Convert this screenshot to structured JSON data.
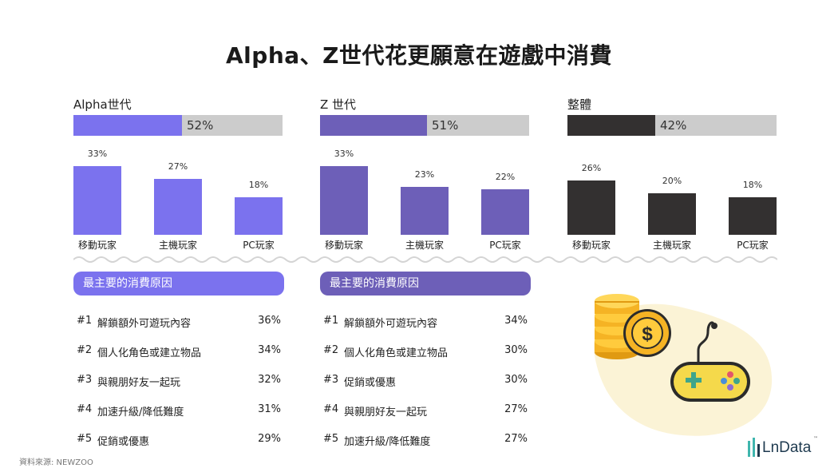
{
  "title": "Alpha、Z世代花更願意在遊戲中消費",
  "source": "資料來源: NEWZOO",
  "logo_text": "LnData",
  "logo_tm": "™",
  "colors": {
    "alpha": "#7B72EE",
    "genz": "#6D5FB8",
    "overall": "#333030",
    "track": "#CCCCCC",
    "blob": "#FBF3D6"
  },
  "chart_data": [
    {
      "type": "bar",
      "title": "Alpha世代",
      "share_label": "52%",
      "share": 0.52,
      "categories": [
        "移動玩家",
        "主機玩家",
        "PC玩家"
      ],
      "values": [
        33,
        27,
        18
      ],
      "value_labels": [
        "33%",
        "27%",
        "18%"
      ],
      "ylim": [
        0,
        33
      ]
    },
    {
      "type": "bar",
      "title": "Z 世代",
      "share_label": "51%",
      "share": 0.51,
      "categories": [
        "移動玩家",
        "主機玩家",
        "PC玩家"
      ],
      "values": [
        33,
        23,
        22
      ],
      "value_labels": [
        "33%",
        "23%",
        "22%"
      ],
      "ylim": [
        0,
        33
      ]
    },
    {
      "type": "bar",
      "title": "整體",
      "share_label": "42%",
      "share": 0.42,
      "categories": [
        "移動玩家",
        "主機玩家",
        "PC玩家"
      ],
      "values": [
        26,
        20,
        18
      ],
      "value_labels": [
        "26%",
        "20%",
        "18%"
      ],
      "ylim": [
        0,
        33
      ]
    }
  ],
  "reasons": [
    {
      "heading": "最主要的消費原因",
      "items": [
        {
          "rank": "#1",
          "label": "解鎖額外可遊玩內容",
          "value": "36%"
        },
        {
          "rank": "#2",
          "label": "個人化角色或建立物品",
          "value": "34%"
        },
        {
          "rank": "#3",
          "label": "與親朋好友一起玩",
          "value": "32%"
        },
        {
          "rank": "#4",
          "label": "加速升級/降低難度",
          "value": "31%"
        },
        {
          "rank": "#5",
          "label": "促銷或優惠",
          "value": "29%"
        }
      ]
    },
    {
      "heading": "最主要的消費原因",
      "items": [
        {
          "rank": "#1",
          "label": "解鎖額外可遊玩內容",
          "value": "34%"
        },
        {
          "rank": "#2",
          "label": "個人化角色或建立物品",
          "value": "30%"
        },
        {
          "rank": "#3",
          "label": "促銷或優惠",
          "value": "30%"
        },
        {
          "rank": "#4",
          "label": "與親朋好友一起玩",
          "value": "27%"
        },
        {
          "rank": "#5",
          "label": "加速升級/降低難度",
          "value": "27%"
        }
      ]
    }
  ],
  "illustration": {
    "coins_icon": "coin-stack-dollar-icon",
    "controller_icon": "gamepad-icon"
  }
}
